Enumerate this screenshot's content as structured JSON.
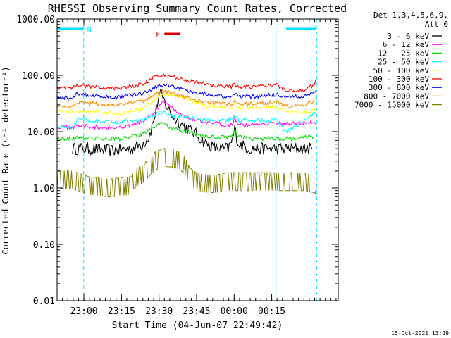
{
  "chart_data": {
    "type": "line",
    "title": "RHESSI Observing Summary Count Rates, Corrected",
    "xlabel": "Start Time (04-Jun-07 22:49:42)",
    "ylabel": "Corrected Count Rate (s⁻¹ detector⁻¹)",
    "y_scale": "log",
    "ylim": [
      0.01,
      1000
    ],
    "xlim_min": [
      -9.7,
      121.3
    ],
    "yticks": [
      {
        "v": 1000,
        "label": "1000.00"
      },
      {
        "v": 100,
        "label": "100.00"
      },
      {
        "v": 10,
        "label": "10.00"
      },
      {
        "v": 1,
        "label": "1.00"
      },
      {
        "v": 0.1,
        "label": "0.10"
      },
      {
        "v": 0.01,
        "label": "0.01"
      }
    ],
    "xticks": [
      {
        "t": 2.8,
        "label": "23:00"
      },
      {
        "t": 20.3,
        "label": "23:15"
      },
      {
        "t": 37.8,
        "label": "23:30"
      },
      {
        "t": 55.3,
        "label": "23:45"
      },
      {
        "t": 72.8,
        "label": "00:00"
      },
      {
        "t": 90.3,
        "label": "00:15"
      }
    ],
    "detectors_label": "Det 1,3,4,5,6,9,",
    "attenuator_label": "Att 0",
    "flag_marks": [
      {
        "label": "N",
        "color": "#00e5ff",
        "start": -9.7,
        "end": 2.7
      },
      {
        "label": "F",
        "color": "#dd0000",
        "start": 40.3,
        "end": 47.8
      }
    ],
    "flag_extra_bar": {
      "color": "#00e5ff",
      "start": 97.0,
      "end": 111.0
    },
    "vlines": [
      {
        "t": -9.7,
        "style": "solid"
      },
      {
        "t": 2.7,
        "style": "dashed"
      },
      {
        "t": 92.3,
        "style": "solid"
      },
      {
        "t": 111.2,
        "style": "dashed"
      }
    ],
    "series": [
      {
        "name": "3 - 6 keV",
        "color": "#000000",
        "x": [
          -2.5,
          0,
          5,
          10,
          15,
          20,
          25,
          30,
          33,
          35,
          36.5,
          37.5,
          38.5,
          39.5,
          41,
          43,
          45,
          47,
          50,
          55,
          60,
          65,
          70,
          72,
          73,
          75,
          80,
          85,
          90,
          95,
          100,
          105,
          109
        ],
        "y": [
          5.0,
          5.0,
          5.0,
          4.8,
          4.6,
          4.8,
          5.0,
          6.0,
          8.0,
          14,
          25,
          40,
          46,
          40,
          30,
          22,
          17,
          15,
          12,
          9,
          6.0,
          5.0,
          5.0,
          7.0,
          11,
          6.0,
          5.0,
          5.0,
          5.0,
          5.0,
          5.0,
          5.0,
          5.0
        ]
      },
      {
        "name": "6 - 12 keV",
        "color": "#ff00ff",
        "x": [
          -9.7,
          -2.5,
          0,
          10,
          20,
          30,
          35,
          37,
          38.5,
          40,
          42,
          45,
          50,
          55,
          60,
          65,
          70,
          72,
          73,
          75,
          80,
          85,
          90,
          92.5,
          97,
          105,
          110,
          111.2
        ],
        "y": [
          12,
          12,
          13,
          12,
          12,
          15,
          20,
          25,
          30,
          33,
          30,
          24,
          19,
          16,
          14,
          14,
          13,
          14,
          18,
          13,
          13,
          14,
          14,
          14,
          14,
          14,
          15,
          15
        ]
      },
      {
        "name": "12 - 25 keV",
        "color": "#00dd00",
        "x": [
          -9.7,
          -2.5,
          0,
          10,
          20,
          30,
          35,
          38,
          41,
          45,
          50,
          55,
          60,
          65,
          70,
          72,
          73,
          75,
          80,
          85,
          90,
          92.5,
          100,
          105,
          110
        ],
        "y": [
          7.5,
          7.5,
          8.0,
          7.5,
          7.5,
          9.0,
          12,
          14,
          13,
          11,
          10,
          9.0,
          8.0,
          8.0,
          8.0,
          8.5,
          11,
          8.0,
          7.5,
          7.5,
          7.5,
          7.5,
          7.5,
          8.0,
          8.0
        ]
      },
      {
        "name": "25 - 50 keV",
        "color": "#00ffff",
        "x": [
          -9.7,
          -2.5,
          0,
          5,
          10,
          20,
          30,
          35,
          38,
          41,
          45,
          50,
          55,
          60,
          65,
          70,
          72,
          73,
          75,
          80,
          85,
          90,
          92.5,
          97,
          105,
          108,
          111.2
        ],
        "y": [
          12,
          12,
          18,
          16,
          15,
          15,
          16,
          19,
          22,
          21,
          19,
          18,
          17,
          16,
          16,
          16,
          17,
          19,
          16,
          16,
          16,
          16,
          16,
          10,
          15,
          19,
          22
        ]
      },
      {
        "name": "50 - 100 keV",
        "color": "#ffff00",
        "x": [
          -9.7,
          0,
          5,
          10,
          20,
          30,
          35,
          38,
          41,
          45,
          50,
          55,
          60,
          65,
          70,
          72,
          73,
          75,
          80,
          85,
          90,
          92.5,
          97,
          105,
          110,
          111.2
        ],
        "y": [
          23,
          23,
          23,
          22,
          21,
          25,
          35,
          45,
          48,
          44,
          38,
          33,
          29,
          27,
          27,
          27,
          30,
          27,
          27,
          27,
          27,
          28,
          24,
          22,
          24,
          26
        ]
      },
      {
        "name": "100 - 300 keV",
        "color": "#ff0000",
        "x": [
          -9.7,
          -2.5,
          0,
          5,
          10,
          20,
          30,
          35,
          38,
          41,
          45,
          50,
          55,
          60,
          65,
          70,
          72,
          73,
          75,
          80,
          85,
          90,
          92.5,
          97,
          105,
          110,
          111.2
        ],
        "y": [
          60,
          60,
          68,
          64,
          60,
          58,
          70,
          88,
          100,
          101,
          92,
          83,
          75,
          70,
          66,
          62,
          64,
          72,
          62,
          62,
          64,
          68,
          68,
          52,
          55,
          68,
          90
        ]
      },
      {
        "name": "300 - 800 keV",
        "color": "#0000ff",
        "x": [
          -9.7,
          -2.5,
          0,
          5,
          10,
          20,
          30,
          35,
          38,
          41,
          45,
          50,
          55,
          60,
          65,
          70,
          72,
          73,
          75,
          80,
          85,
          90,
          92.5,
          97,
          105,
          110,
          111.2
        ],
        "y": [
          40,
          40,
          48,
          44,
          42,
          41,
          48,
          58,
          65,
          68,
          62,
          55,
          50,
          47,
          44,
          42,
          42,
          47,
          42,
          42,
          43,
          45,
          46,
          40,
          43,
          50,
          58
        ]
      },
      {
        "name": "800 - 7000 keV",
        "color": "#ff8800",
        "x": [
          -9.7,
          -2.5,
          0,
          5,
          10,
          20,
          30,
          35,
          38,
          41,
          45,
          50,
          55,
          60,
          65,
          70,
          72,
          73,
          75,
          80,
          85,
          90,
          92.5,
          97,
          105,
          110,
          111.2
        ],
        "y": [
          28,
          28,
          34,
          32,
          30,
          30,
          35,
          43,
          50,
          52,
          47,
          41,
          37,
          34,
          32,
          31,
          31,
          34,
          31,
          31,
          32,
          33,
          34,
          28,
          30,
          35,
          40
        ]
      },
      {
        "name": "7000 - 15000 keV",
        "color": "#808000",
        "x": [
          -9.7,
          -2.5,
          5,
          15,
          25,
          26,
          28,
          30,
          33,
          36,
          40,
          44,
          48,
          50,
          52,
          55,
          60,
          65,
          70,
          75,
          80,
          85,
          90,
          95,
          100,
          105,
          110,
          111.2
        ],
        "y": [
          1.4,
          1.4,
          1.1,
          1.0,
          1.1,
          1.4,
          1.6,
          1.7,
          2.3,
          3.0,
          3.5,
          3.4,
          3.0,
          2.4,
          1.6,
          1.3,
          1.2,
          1.2,
          1.3,
          1.3,
          1.3,
          1.3,
          1.3,
          1.3,
          1.3,
          1.3,
          1.2,
          1.1
        ]
      }
    ]
  },
  "footer": {
    "date": "15-Oct-2021 13:29"
  }
}
